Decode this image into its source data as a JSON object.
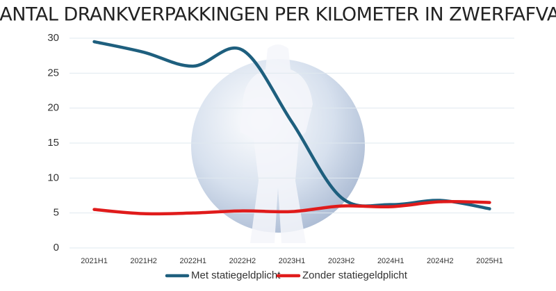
{
  "chart_data": {
    "type": "line",
    "title": "AANTAL DRANKVERPAKKINGEN PER KILOMETER IN ZWERFAFVAL",
    "categories": [
      "2021H1",
      "2021H2",
      "2022H1",
      "2022H2",
      "2023H1",
      "2023H2",
      "2024H1",
      "2024H2",
      "2025H1"
    ],
    "series": [
      {
        "name": "Met statiegeldplicht",
        "color": "#1e5f7e",
        "values": [
          29.5,
          28,
          26,
          28.3,
          18,
          7.2,
          6.2,
          6.8,
          5.6
        ]
      },
      {
        "name": "Zonder statiegeldplicht",
        "color": "#e01b1b",
        "values": [
          5.5,
          4.9,
          5.0,
          5.3,
          5.2,
          6.0,
          5.9,
          6.6,
          6.5
        ]
      }
    ],
    "ylim": [
      0,
      30
    ],
    "yticks": [
      0,
      5,
      10,
      15,
      20,
      25,
      30
    ],
    "grid": true
  }
}
